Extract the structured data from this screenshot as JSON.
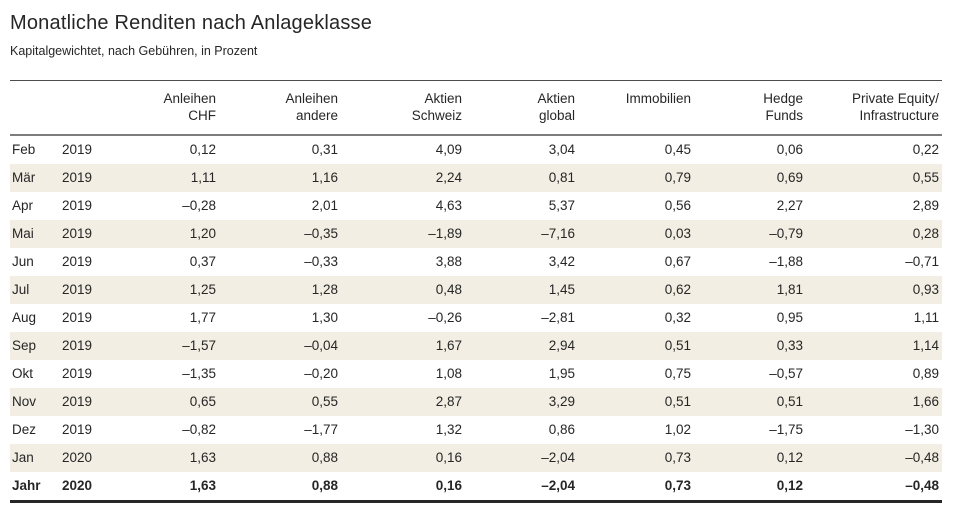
{
  "header": {
    "title": "Monatliche Renditen nach Anlageklasse",
    "subtitle": "Kapitalgewichtet, nach Gebühren, in Prozent"
  },
  "colors": {
    "stripe_row_background": "#f2eee3",
    "text": "#262626",
    "top_rule": "#4d4d4d",
    "header_rule": "#7d7d7d",
    "bottom_rule": "#262626"
  },
  "chart_data": {
    "type": "table",
    "title": "Monatliche Renditen nach Anlageklasse",
    "subtitle": "Kapitalgewichtet, nach Gebühren, in Prozent",
    "unit": "Prozent",
    "columns": [
      {
        "lines": [
          "Anleihen",
          "CHF"
        ]
      },
      {
        "lines": [
          "Anleihen",
          "andere"
        ]
      },
      {
        "lines": [
          "Aktien",
          "Schweiz"
        ]
      },
      {
        "lines": [
          "Aktien",
          "global"
        ]
      },
      {
        "lines": [
          "Immobilien"
        ]
      },
      {
        "lines": [
          "Hedge",
          "Funds"
        ]
      },
      {
        "lines": [
          "Private Equity/",
          "Infrastructure"
        ]
      }
    ],
    "rows": [
      {
        "month": "Feb",
        "year": "2019",
        "values": [
          "0,12",
          "0,31",
          "4,09",
          "3,04",
          "0,45",
          "0,06",
          "0,22"
        ],
        "total": false
      },
      {
        "month": "Mär",
        "year": "2019",
        "values": [
          "1,11",
          "1,16",
          "2,24",
          "0,81",
          "0,79",
          "0,69",
          "0,55"
        ],
        "total": false
      },
      {
        "month": "Apr",
        "year": "2019",
        "values": [
          "–0,28",
          "2,01",
          "4,63",
          "5,37",
          "0,56",
          "2,27",
          "2,89"
        ],
        "total": false
      },
      {
        "month": "Mai",
        "year": "2019",
        "values": [
          "1,20",
          "–0,35",
          "–1,89",
          "–7,16",
          "0,03",
          "–0,79",
          "0,28"
        ],
        "total": false
      },
      {
        "month": "Jun",
        "year": "2019",
        "values": [
          "0,37",
          "–0,33",
          "3,88",
          "3,42",
          "0,67",
          "–1,88",
          "–0,71"
        ],
        "total": false
      },
      {
        "month": "Jul",
        "year": "2019",
        "values": [
          "1,25",
          "1,28",
          "0,48",
          "1,45",
          "0,62",
          "1,81",
          "0,93"
        ],
        "total": false
      },
      {
        "month": "Aug",
        "year": "2019",
        "values": [
          "1,77",
          "1,30",
          "–0,26",
          "–2,81",
          "0,32",
          "0,95",
          "1,11"
        ],
        "total": false
      },
      {
        "month": "Sep",
        "year": "2019",
        "values": [
          "–1,57",
          "–0,04",
          "1,67",
          "2,94",
          "0,51",
          "0,33",
          "1,14"
        ],
        "total": false
      },
      {
        "month": "Okt",
        "year": "2019",
        "values": [
          "–1,35",
          "–0,20",
          "1,08",
          "1,95",
          "0,75",
          "–0,57",
          "0,89"
        ],
        "total": false
      },
      {
        "month": "Nov",
        "year": "2019",
        "values": [
          "0,65",
          "0,55",
          "2,87",
          "3,29",
          "0,51",
          "0,51",
          "1,66"
        ],
        "total": false
      },
      {
        "month": "Dez",
        "year": "2019",
        "values": [
          "–0,82",
          "–1,77",
          "1,32",
          "0,86",
          "1,02",
          "–1,75",
          "–1,30"
        ],
        "total": false
      },
      {
        "month": "Jan",
        "year": "2020",
        "values": [
          "1,63",
          "0,88",
          "0,16",
          "–2,04",
          "0,73",
          "0,12",
          "–0,48"
        ],
        "total": false
      },
      {
        "month": "Jahr",
        "year": "2020",
        "values": [
          "1,63",
          "0,88",
          "0,16",
          "–2,04",
          "0,73",
          "0,12",
          "–0,48"
        ],
        "total": true
      }
    ]
  }
}
